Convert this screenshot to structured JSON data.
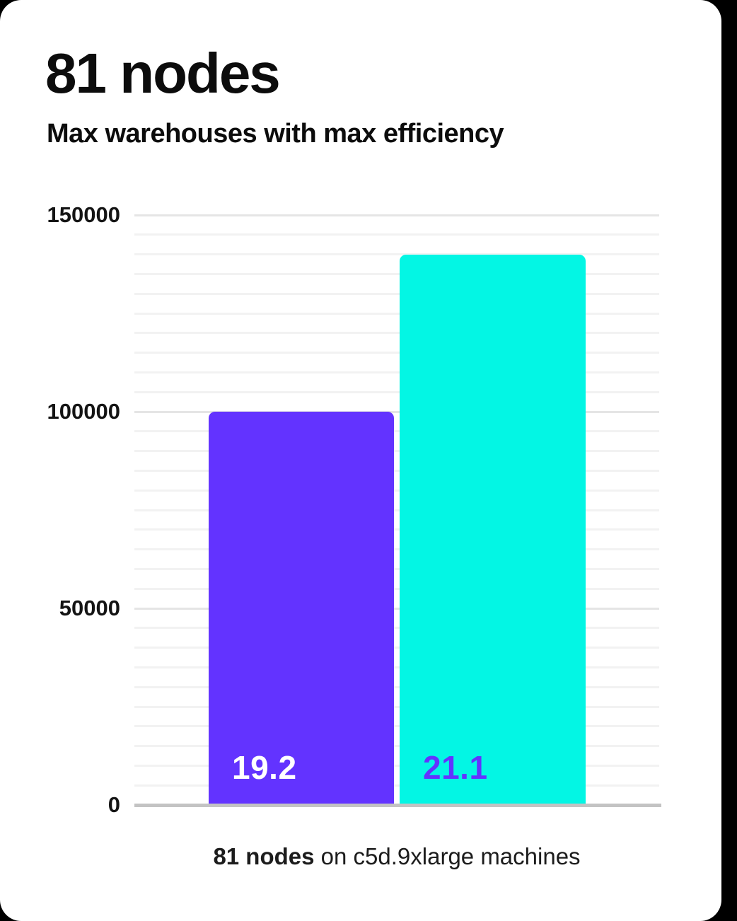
{
  "card": {
    "title": "81 nodes",
    "subtitle": "Max warehouses with max efficiency",
    "caption": {
      "bold_part": "81 nodes",
      "rest_part": " on c5d.9xlarge machines"
    }
  },
  "chart_data": {
    "type": "bar",
    "title": "81 nodes",
    "subtitle": "Max warehouses with max efficiency",
    "categories": [
      "19.2",
      "21.1"
    ],
    "values": [
      100000,
      140000
    ],
    "bar_labels": [
      "19.2",
      "21.1"
    ],
    "bar_colors": [
      "#6333ff",
      "#03f6e4"
    ],
    "bar_label_colors": [
      "#ffffff",
      "#6333ff"
    ],
    "xlabel": "81 nodes on c5d.9xlarge machines",
    "ylabel": "",
    "ylim": [
      0,
      150000
    ],
    "yticks": [
      0,
      50000,
      100000,
      150000
    ],
    "minor_gridline_step": 5000,
    "major_gridline_step": 50000,
    "grid": "horizontal",
    "legend": false,
    "colors": {
      "background": "#ffffff",
      "minor_gridline": "#f2f2f2",
      "major_gridline": "#e5e5e5",
      "axis_line": "#c3c3c3",
      "text": "#0c0c0c"
    }
  }
}
